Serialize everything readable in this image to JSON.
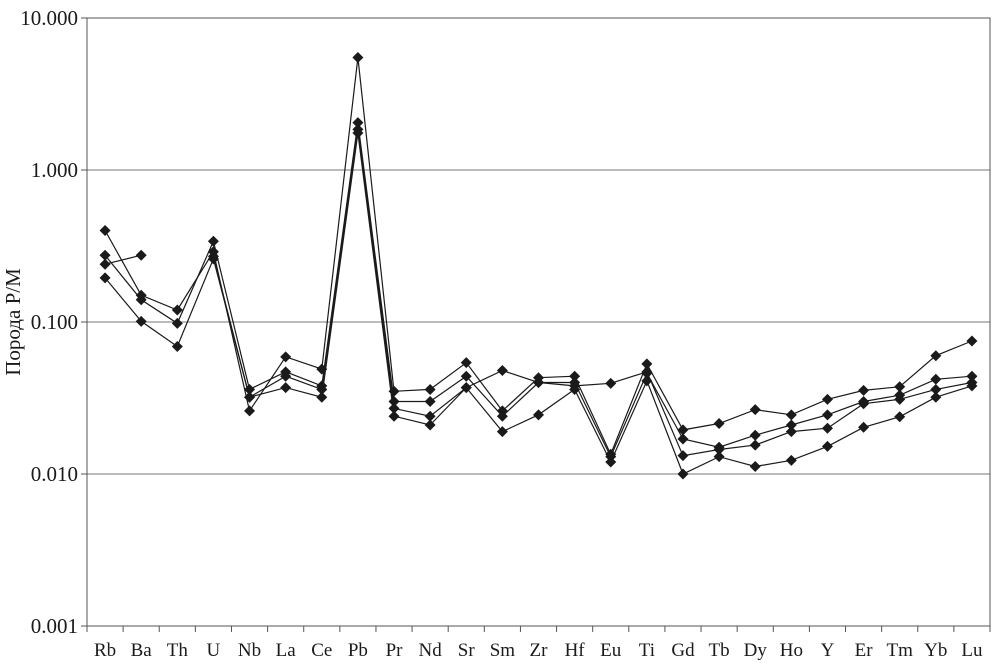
{
  "chart_data": {
    "type": "line",
    "title": "",
    "xlabel": "",
    "ylabel": "Порода Р/М",
    "yscale": "log",
    "ylim": [
      0.001,
      10
    ],
    "grid": "horizontal",
    "yticks": [
      {
        "value": 10,
        "label": "10.000"
      },
      {
        "value": 1,
        "label": "1.000"
      },
      {
        "value": 0.1,
        "label": "0.100"
      },
      {
        "value": 0.01,
        "label": "0.010"
      },
      {
        "value": 0.001,
        "label": "0.001"
      }
    ],
    "categories": [
      "Rb",
      "Ba",
      "Th",
      "U",
      "Nb",
      "La",
      "Ce",
      "Pb",
      "Pr",
      "Nd",
      "Sr",
      "Sm",
      "Zr",
      "Hf",
      "Eu",
      "Ti",
      "Gd",
      "Tb",
      "Dy",
      "Ho",
      "Y",
      "Er",
      "Tm",
      "Yb",
      "Lu"
    ],
    "marker": "diamond",
    "series_color": "#1a1a1a",
    "series": [
      {
        "values": [
          0.4,
          0.15,
          0.12,
          0.29,
          0.026,
          0.059,
          0.049,
          5.5,
          0.035,
          0.036,
          0.054,
          0.026,
          0.043,
          0.044,
          0.0135,
          0.053,
          0.0195,
          0.0215,
          0.0265,
          0.0245,
          0.031,
          0.0355,
          0.0375,
          0.06,
          0.075
        ]
      },
      {
        "values": [
          0.275,
          0.14,
          0.098,
          0.34,
          0.036,
          0.047,
          0.038,
          2.05,
          0.03,
          0.03,
          0.044,
          0.024,
          0.04,
          0.04,
          0.013,
          0.046,
          0.017,
          0.015,
          0.018,
          0.021,
          0.0245,
          0.03,
          0.033,
          0.042,
          0.044
        ]
      },
      {
        "values": [
          0.24,
          0.275,
          null,
          0.27,
          0.032,
          0.044,
          0.036,
          1.85,
          0.027,
          0.024,
          0.037,
          0.048,
          0.04,
          0.038,
          0.0395,
          0.047,
          0.0132,
          0.0145,
          0.0155,
          0.019,
          0.02,
          0.029,
          0.031,
          0.036,
          0.04
        ]
      },
      {
        "values": [
          0.195,
          0.101,
          0.069,
          0.26,
          0.032,
          0.037,
          0.032,
          1.75,
          0.024,
          0.021,
          0.037,
          0.019,
          0.0245,
          0.036,
          0.012,
          0.041,
          0.01,
          0.013,
          0.0112,
          0.0123,
          0.0152,
          0.0203,
          0.0238,
          0.032,
          0.038
        ]
      }
    ]
  }
}
